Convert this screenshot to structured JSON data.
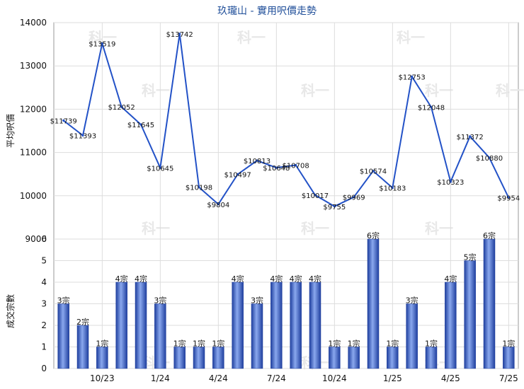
{
  "chart_data": [
    {
      "type": "line",
      "title": "玖瓏山 - 實用呎價走勢",
      "ylabel": "平均呎價",
      "ylim": [
        9000,
        14000
      ],
      "yticks": [
        "9000",
        "10000",
        "11000",
        "12000",
        "13000",
        "14000"
      ],
      "grid": true,
      "x": [
        "8/23",
        "9/23",
        "10/23",
        "11/23",
        "12/23",
        "1/24",
        "2/24",
        "3/24",
        "4/24",
        "5/24",
        "6/24",
        "7/24",
        "8/24",
        "9/24",
        "10/24",
        "11/24",
        "12/24",
        "1/25",
        "2/25",
        "3/25",
        "4/25",
        "5/25",
        "6/25",
        "7/25"
      ],
      "series": [
        {
          "color": "#2352c7",
          "values": [
            11739,
            11393,
            13519,
            12052,
            11645,
            10645,
            13742,
            10198,
            9804,
            10497,
            10813,
            10648,
            10708,
            10017,
            9755,
            9969,
            10574,
            10183,
            12753,
            12048,
            10323,
            11372,
            10880,
            9954
          ],
          "labels": [
            "$11739",
            "$11393",
            "$13519",
            "$12052",
            "$11645",
            "$10645",
            "$13742",
            "$10198",
            "$9804",
            "$10497",
            "$10813",
            "$10648",
            "$10708",
            "$10017",
            "$9755",
            "$9969",
            "$10574",
            "$10183",
            "$12753",
            "$12048",
            "$10323",
            "$11372",
            "$10880",
            "$9954"
          ]
        }
      ]
    },
    {
      "type": "bar",
      "ylabel": "成交宗數",
      "ylim": [
        0,
        6
      ],
      "yticks": [
        "0",
        "1",
        "2",
        "3",
        "4",
        "5",
        "6"
      ],
      "grid": true,
      "categories": [
        "8/23",
        "9/23",
        "10/23",
        "11/23",
        "12/23",
        "1/24",
        "2/24",
        "3/24",
        "4/24",
        "5/24",
        "6/24",
        "7/24",
        "8/24",
        "9/24",
        "10/24",
        "11/24",
        "12/24",
        "1/25",
        "2/25",
        "3/25",
        "4/25",
        "5/25",
        "6/25",
        "7/25"
      ],
      "xtick_labels": [
        "10/23",
        "1/24",
        "4/24",
        "7/24",
        "10/24",
        "1/25",
        "4/25",
        "7/25"
      ],
      "xtick_categories": [
        "10/23",
        "1/24",
        "4/24",
        "7/24",
        "10/24",
        "1/25",
        "4/25",
        "7/25"
      ],
      "series": [
        {
          "color": "#3d63c9",
          "values": [
            3,
            2,
            1,
            4,
            4,
            3,
            1,
            1,
            1,
            4,
            3,
            4,
            4,
            4,
            1,
            1,
            6,
            1,
            3,
            1,
            4,
            5,
            6,
            1
          ],
          "labels": [
            "3宗",
            "2宗",
            "1宗",
            "4宗",
            "4宗",
            "3宗",
            "1宗",
            "1宗",
            "1宗",
            "4宗",
            "3宗",
            "4宗",
            "4宗",
            "4宗",
            "1宗",
            "1宗",
            "6宗",
            "1宗",
            "3宗",
            "1宗",
            "4宗",
            "5宗",
            "6宗",
            "1宗"
          ]
        }
      ]
    }
  ],
  "watermark": "科一"
}
